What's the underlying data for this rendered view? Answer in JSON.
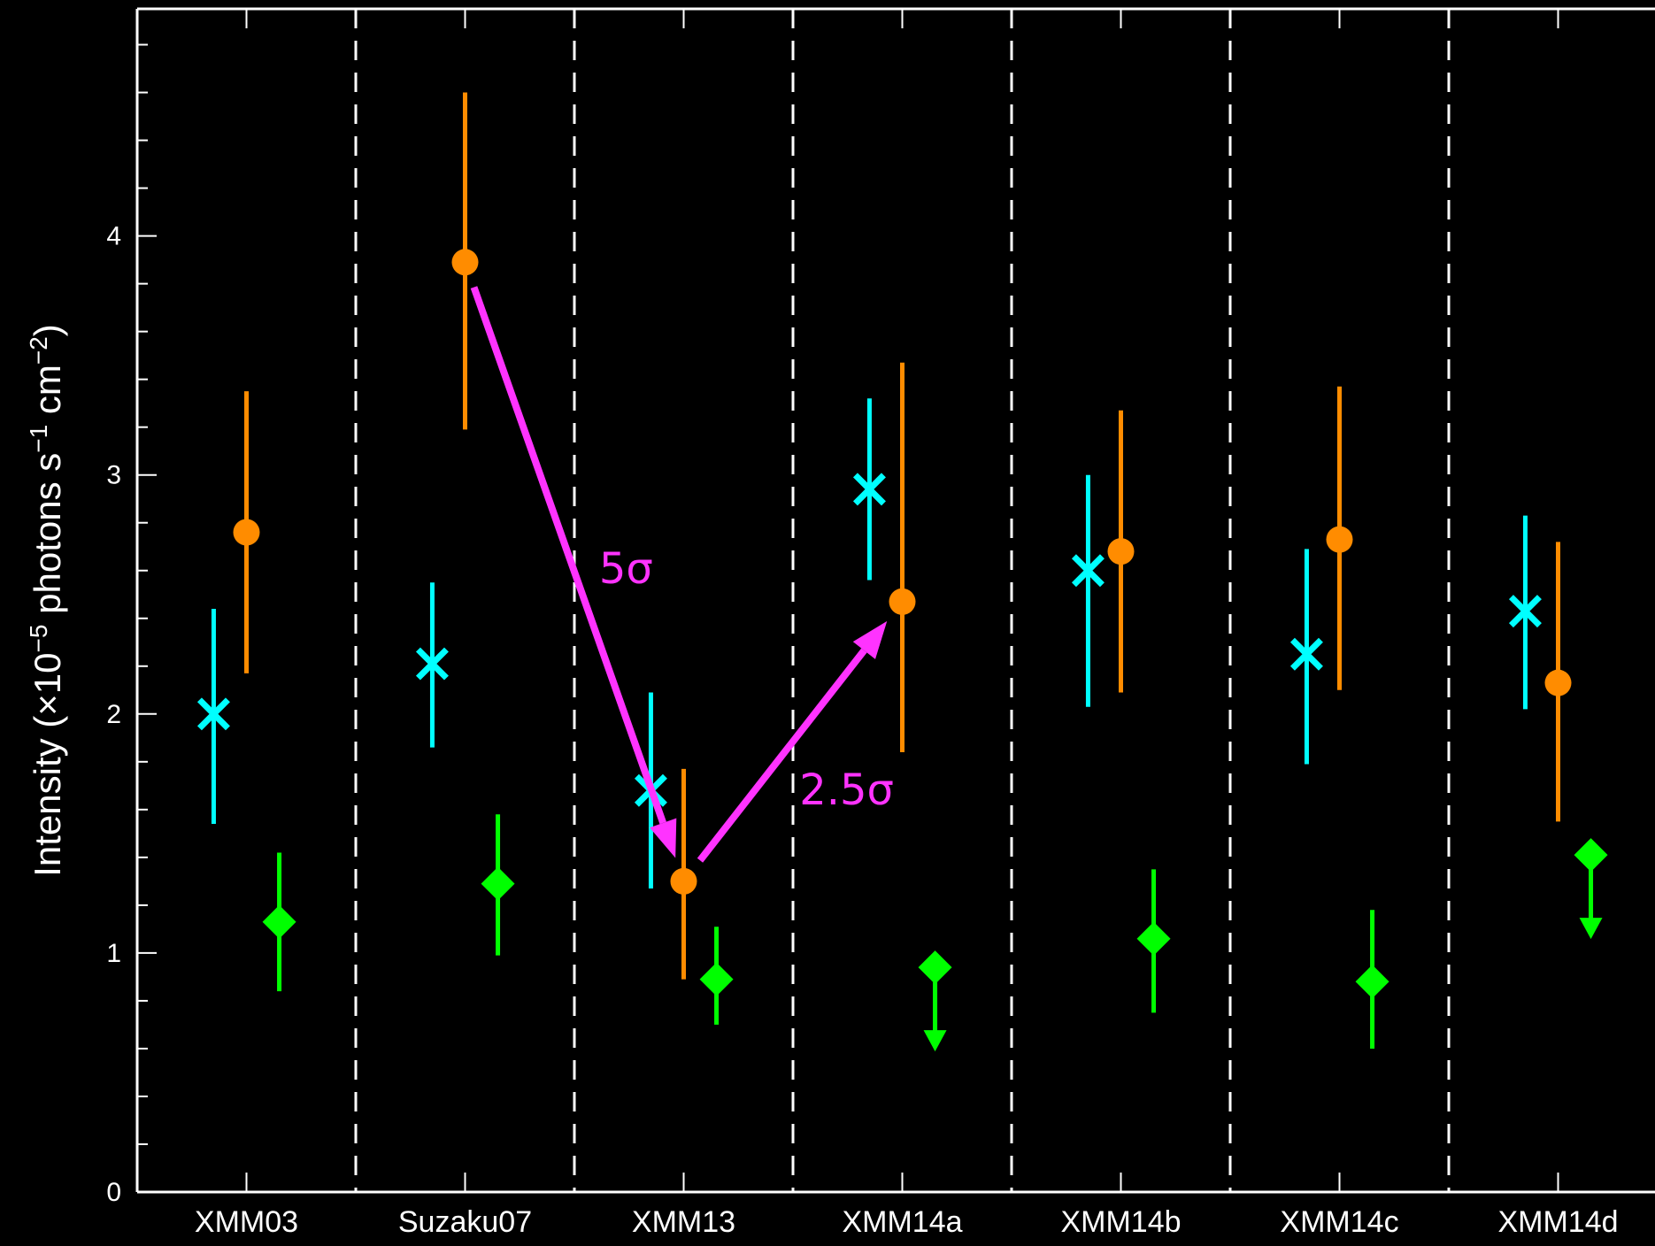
{
  "chart_data": {
    "type": "scatter",
    "categories": [
      "XMM03",
      "Suzaku07",
      "XMM13",
      "XMM14a",
      "XMM14b",
      "XMM14c",
      "XMM14d"
    ],
    "ylim": [
      0,
      4.95
    ],
    "yticks": [
      "0",
      "1",
      "2",
      "3",
      "4"
    ],
    "ylabel": {
      "prefix": "Intensity (",
      "times": "×",
      "base": "10",
      "exp1": "−5",
      "mid": " photons s",
      "exp2": "−1",
      "mid2": " cm",
      "exp3": "−2",
      "suffix": ")"
    },
    "grid": false,
    "series": [
      {
        "marker": "x",
        "color": "#00ffff",
        "offset": -0.15,
        "values": [
          2.0,
          2.21,
          1.68,
          2.94,
          2.6,
          2.25,
          2.43
        ],
        "err_low": [
          1.54,
          1.86,
          1.27,
          2.56,
          2.03,
          1.79,
          2.02
        ],
        "err_high": [
          2.44,
          2.55,
          2.09,
          3.32,
          3.0,
          2.69,
          2.83
        ]
      },
      {
        "marker": "circle",
        "color": "#ff8c00",
        "offset": 0.0,
        "values": [
          2.76,
          3.89,
          1.3,
          2.47,
          2.68,
          2.73,
          2.13
        ],
        "err_low": [
          2.17,
          3.19,
          0.89,
          1.84,
          2.09,
          2.1,
          1.55
        ],
        "err_high": [
          3.35,
          4.6,
          1.77,
          3.47,
          3.27,
          3.37,
          2.72
        ]
      },
      {
        "marker": "diamond",
        "color": "#00ff00",
        "offset": 0.15,
        "values": [
          1.13,
          1.29,
          0.89,
          0.94,
          1.06,
          0.88,
          1.41
        ],
        "err_low": [
          0.84,
          0.99,
          0.7,
          null,
          0.75,
          0.6,
          null
        ],
        "err_high": [
          1.42,
          1.58,
          1.11,
          null,
          1.35,
          1.18,
          null
        ],
        "upper_limit": [
          false,
          false,
          false,
          true,
          false,
          false,
          true
        ]
      }
    ],
    "annotations": [
      {
        "text": "5σ",
        "color": "#ff33ff",
        "from": [
          "Suzaku07",
          3.89
        ],
        "to": [
          "XMM13",
          1.3
        ]
      },
      {
        "text": "2.5σ",
        "color": "#ff33ff",
        "from": [
          "XMM13",
          1.3
        ],
        "to": [
          "XMM14a",
          2.47
        ]
      }
    ]
  }
}
